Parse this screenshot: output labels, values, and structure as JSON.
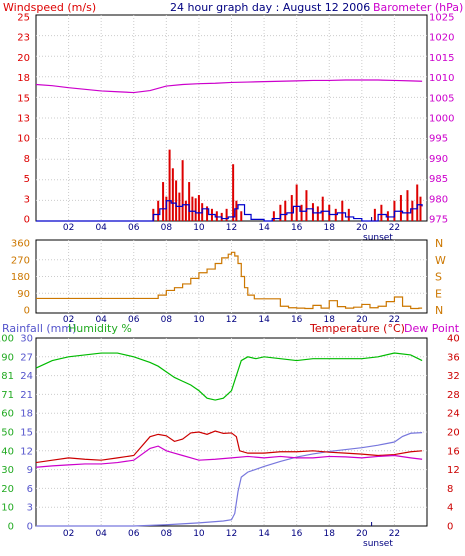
{
  "chart_data": [
    {
      "type": "line",
      "title": "24 hour graph day : August 12 2006",
      "left_axis_label": "Windspeed (m/s)",
      "right_axis_label": "Barometer (hPa)",
      "left_ticks": [
        "0",
        "3",
        "5",
        "8",
        "10",
        "13",
        "15",
        "18",
        "20",
        "23",
        "25"
      ],
      "left_range": [
        0,
        25.4
      ],
      "right_ticks": [
        "975",
        "980",
        "985",
        "990",
        "995",
        "1000",
        "1005",
        "1010",
        "1015",
        "1020",
        "1025"
      ],
      "right_range": [
        975,
        1026
      ],
      "x_ticks": [
        "02",
        "04",
        "06",
        "08",
        "10",
        "12",
        "14",
        "16",
        "18",
        "20",
        "22"
      ],
      "x_range": [
        0,
        24
      ],
      "sunset_label": "sunset",
      "sunset_hour": 20.6,
      "colors": {
        "wind": "#0000cc",
        "gust": "#dd0000",
        "barometer": "#cc00cc",
        "axis_left": "#dd0000",
        "axis_right": "#cc00cc"
      },
      "series": [
        {
          "name": "Barometer",
          "x": [
            0,
            1,
            2,
            3,
            4,
            5,
            6,
            7,
            8,
            9,
            10,
            11,
            12,
            13,
            14,
            15,
            16,
            17,
            18,
            19,
            20,
            21,
            22,
            23,
            23.7
          ],
          "values": [
            1008.8,
            1008.5,
            1008.0,
            1007.6,
            1007.2,
            1007.0,
            1006.8,
            1007.3,
            1008.4,
            1008.8,
            1009.0,
            1009.1,
            1009.3,
            1009.4,
            1009.5,
            1009.6,
            1009.7,
            1009.8,
            1009.8,
            1009.9,
            1009.9,
            1009.9,
            1009.8,
            1009.7,
            1009.6
          ]
        },
        {
          "name": "Windspeed",
          "x": [
            0,
            6.8,
            7.2,
            7.6,
            8.0,
            8.3,
            8.6,
            9.0,
            9.4,
            9.8,
            10.2,
            10.6,
            11.0,
            11.4,
            11.8,
            12.2,
            12.4,
            12.8,
            13.2,
            14.0,
            14.5,
            15.0,
            15.4,
            15.8,
            16.2,
            16.6,
            17.0,
            17.5,
            18.0,
            18.5,
            19.0,
            19.5,
            20.0,
            20.5,
            21.0,
            21.5,
            22.0,
            22.5,
            23.0,
            23.4,
            23.7
          ],
          "values": [
            0,
            0,
            0.8,
            1.5,
            2.5,
            2.2,
            1.8,
            2.0,
            1.2,
            1.0,
            1.5,
            0.8,
            0.5,
            0.3,
            0.5,
            1.5,
            2.0,
            0.8,
            0.2,
            0,
            0.3,
            0.8,
            1.0,
            1.8,
            1.2,
            1.5,
            1.0,
            1.2,
            0.8,
            1.0,
            0.5,
            0.3,
            0,
            0,
            0.8,
            0.5,
            1.2,
            1.0,
            1.5,
            2.0,
            1.8
          ]
        },
        {
          "name": "Gust",
          "x": [
            7.2,
            7.5,
            7.8,
            8.0,
            8.2,
            8.4,
            8.6,
            8.8,
            9.0,
            9.2,
            9.4,
            9.6,
            9.8,
            10.0,
            10.2,
            10.5,
            10.8,
            11.1,
            11.4,
            11.7,
            12.1,
            12.3,
            12.6,
            14.6,
            15.0,
            15.3,
            15.7,
            16.0,
            16.3,
            16.6,
            17.0,
            17.3,
            17.6,
            18.0,
            18.4,
            18.8,
            19.2,
            20.8,
            21.2,
            21.6,
            22.0,
            22.4,
            22.8,
            23.1,
            23.4,
            23.6
          ],
          "values": [
            1.5,
            2.5,
            4.8,
            3.0,
            8.8,
            6.5,
            5.0,
            3.5,
            7.5,
            2.5,
            4.8,
            3.0,
            2.8,
            3.2,
            2.2,
            1.8,
            1.5,
            1.2,
            1.0,
            1.5,
            7.0,
            2.5,
            1.2,
            1.2,
            2.0,
            2.5,
            3.2,
            4.5,
            2.0,
            3.8,
            2.2,
            1.8,
            3.0,
            2.0,
            1.5,
            2.5,
            1.5,
            1.5,
            2.0,
            1.2,
            2.5,
            3.2,
            3.8,
            2.5,
            4.5,
            3.0
          ]
        }
      ]
    },
    {
      "type": "line",
      "left_ticks": [
        "0",
        "90",
        "180",
        "270",
        "360"
      ],
      "left_range": [
        0,
        360
      ],
      "right_labels": [
        "N",
        "W",
        "S",
        "E",
        "N"
      ],
      "x_ticks": [
        "02",
        "04",
        "06",
        "08",
        "10",
        "12",
        "14",
        "16",
        "18",
        "20",
        "22"
      ],
      "x_range": [
        0,
        24
      ],
      "colors": {
        "direction": "#cc7700"
      },
      "series": [
        {
          "name": "Wind direction",
          "x": [
            0,
            1,
            2,
            3,
            4,
            5,
            6,
            6.8,
            7.5,
            8.0,
            8.5,
            9.0,
            9.5,
            10.0,
            10.5,
            11.0,
            11.4,
            11.8,
            12.0,
            12.2,
            12.4,
            12.6,
            12.8,
            13.0,
            13.4,
            13.8,
            14.2,
            14.6,
            15.0,
            15.5,
            16.0,
            16.5,
            17.0,
            17.5,
            18.0,
            18.5,
            19.0,
            19.5,
            20.0,
            20.5,
            21.0,
            21.5,
            22.0,
            22.5,
            23.0,
            23.5,
            23.7
          ],
          "values": [
            62,
            62,
            62,
            62,
            62,
            62,
            62,
            62,
            80,
            105,
            120,
            140,
            170,
            200,
            220,
            250,
            280,
            300,
            310,
            290,
            250,
            180,
            120,
            80,
            60,
            60,
            60,
            60,
            20,
            12,
            10,
            8,
            25,
            10,
            50,
            18,
            10,
            15,
            30,
            12,
            20,
            45,
            70,
            20,
            8,
            10,
            10
          ]
        }
      ]
    },
    {
      "type": "line",
      "left_label_1": "Rainfall (mm)",
      "left_label_2": "Humidity %",
      "right_label_1": "Temperature (°C)",
      "right_label_2": "Dew Point",
      "humidity_ticks": [
        "0",
        "10",
        "20",
        "30",
        "40",
        "50",
        "60",
        "71",
        "81",
        "90",
        "100"
      ],
      "humidity_range": [
        0,
        100
      ],
      "rain_ticks": [
        "0",
        "3",
        "6",
        "9",
        "12",
        "15",
        "18",
        "21",
        "24",
        "27",
        "30"
      ],
      "rain_range": [
        0,
        30
      ],
      "temp_ticks": [
        "0",
        "4",
        "8",
        "12",
        "16",
        "20",
        "24",
        "28",
        "32",
        "36",
        "40"
      ],
      "temp_range": [
        0,
        40
      ],
      "x_ticks": [
        "02",
        "04",
        "06",
        "08",
        "10",
        "12",
        "14",
        "16",
        "18",
        "20",
        "22"
      ],
      "x_range": [
        0,
        24
      ],
      "sunset_label": "sunset",
      "sunset_hour": 20.6,
      "colors": {
        "humidity": "#00bb00",
        "rain": "#7777dd",
        "temperature": "#cc0000",
        "dewpoint": "#cc00cc",
        "axis_rain": "#5555cc",
        "axis_humidity": "#22aa22",
        "axis_temp": "#cc0000"
      },
      "series": [
        {
          "name": "Humidity",
          "x": [
            0,
            1,
            2,
            3,
            4,
            5,
            6,
            7,
            7.5,
            8,
            8.5,
            9,
            9.5,
            10,
            10.5,
            11,
            11.5,
            12,
            12.3,
            12.6,
            13,
            13.5,
            14,
            15,
            16,
            17,
            18,
            19,
            20,
            21,
            22,
            23,
            23.7
          ],
          "values": [
            84,
            88,
            90,
            91,
            92,
            92,
            90,
            87,
            85,
            82,
            79,
            77,
            75,
            72,
            68,
            67,
            68,
            72,
            80,
            88,
            90,
            89,
            90,
            89,
            88,
            89,
            89,
            89,
            89,
            90,
            92,
            91,
            88
          ]
        },
        {
          "name": "Rainfall",
          "x": [
            0,
            6,
            8,
            10,
            11,
            11.5,
            12,
            12.2,
            12.4,
            12.6,
            13,
            14,
            15,
            16,
            17,
            18,
            19,
            20,
            21,
            22,
            22.5,
            23,
            23.7
          ],
          "values": [
            0,
            0,
            0.2,
            0.5,
            0.7,
            0.8,
            1.0,
            2.0,
            5.5,
            7.8,
            8.6,
            9.5,
            10.3,
            11.0,
            11.5,
            11.9,
            12.2,
            12.5,
            12.9,
            13.4,
            14.3,
            14.8,
            14.9
          ]
        },
        {
          "name": "Temperature",
          "x": [
            0,
            1,
            2,
            3,
            4,
            5,
            6,
            7,
            7.5,
            8,
            8.5,
            9,
            9.5,
            10,
            10.5,
            11,
            11.5,
            12,
            12.3,
            12.5,
            13,
            14,
            15,
            16,
            17,
            18,
            19,
            20,
            21,
            22,
            23,
            23.7
          ],
          "values": [
            13.5,
            14.0,
            14.5,
            14.2,
            14.0,
            14.5,
            15.0,
            19.0,
            19.5,
            19.2,
            18.0,
            18.5,
            19.8,
            20.0,
            19.5,
            20.2,
            19.7,
            19.8,
            19.0,
            16.0,
            15.5,
            15.5,
            15.8,
            15.8,
            16.0,
            15.7,
            15.5,
            15.3,
            15.0,
            15.2,
            15.8,
            16.0
          ]
        },
        {
          "name": "Dew Point",
          "x": [
            0,
            1,
            2,
            3,
            4,
            5,
            6,
            7,
            7.5,
            8,
            8.5,
            9,
            9.5,
            10,
            11,
            12,
            13,
            14,
            15,
            16,
            17,
            18,
            19,
            20,
            21,
            22,
            23,
            23.7
          ],
          "values": [
            12.5,
            12.8,
            13.0,
            13.2,
            13.2,
            13.5,
            14.0,
            16.5,
            17.0,
            16.0,
            15.5,
            15.0,
            14.5,
            14.0,
            14.2,
            14.5,
            14.8,
            14.5,
            14.8,
            14.5,
            14.5,
            14.8,
            14.7,
            14.5,
            14.8,
            15.0,
            14.5,
            14.2
          ]
        }
      ]
    }
  ]
}
